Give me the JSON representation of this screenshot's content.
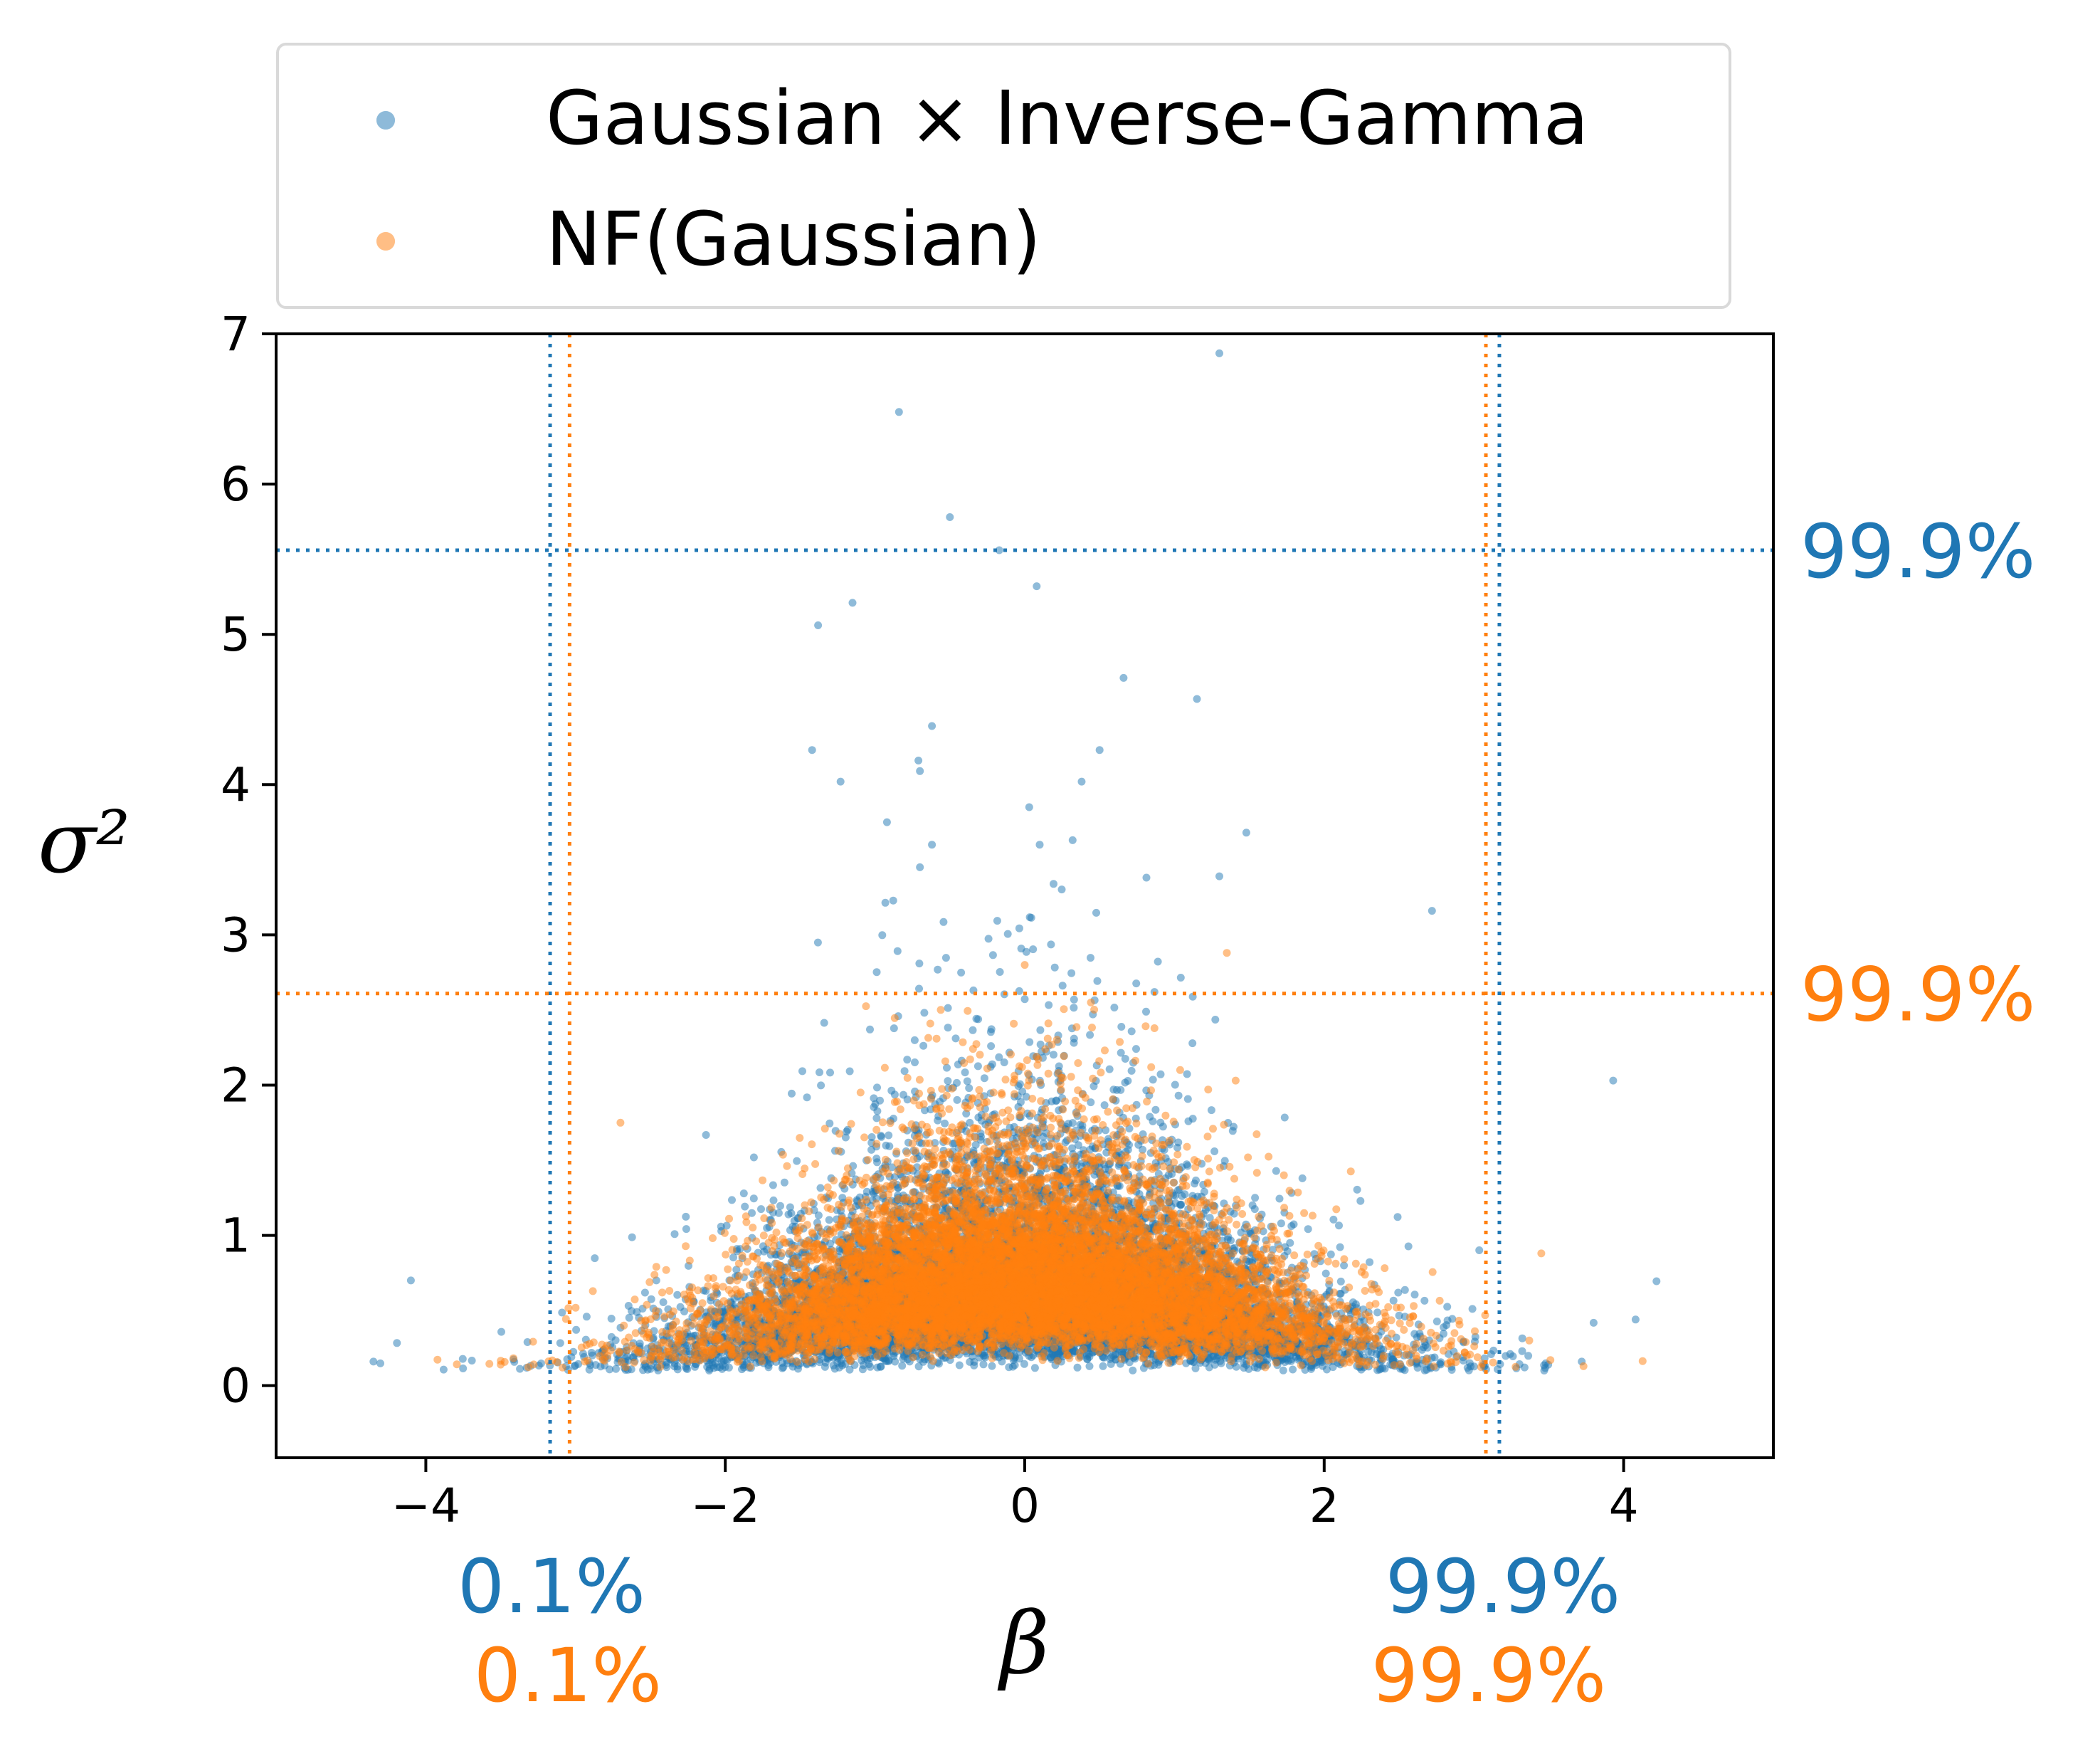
{
  "chart_data": {
    "type": "scatter",
    "xlabel": "β",
    "ylabel": "σ²",
    "xlim": [
      -5,
      5
    ],
    "ylim": [
      -0.48,
      7
    ],
    "x_ticks": [
      -4,
      -2,
      0,
      2,
      4
    ],
    "x_tick_labels": [
      "−4",
      "−2",
      "0",
      "2",
      "4"
    ],
    "y_ticks": [
      0,
      1,
      2,
      3,
      4,
      5,
      6,
      7
    ],
    "y_tick_labels": [
      "0",
      "1",
      "2",
      "3",
      "4",
      "5",
      "6",
      "7"
    ],
    "grid": false,
    "legend_placement": "above plot",
    "series": [
      {
        "name": "Gaussian × Inverse-Gamma",
        "color": "#1f77b4",
        "approx_n_points": 10000,
        "visible_outliers": [
          {
            "x": 1.3,
            "y": 6.87
          },
          {
            "x": -0.84,
            "y": 6.48
          },
          {
            "x": -0.5,
            "y": 5.78
          },
          {
            "x": -0.17,
            "y": 5.56
          },
          {
            "x": 0.08,
            "y": 5.32
          },
          {
            "x": -1.15,
            "y": 5.21
          },
          {
            "x": -1.38,
            "y": 5.06
          },
          {
            "x": 0.66,
            "y": 4.71
          },
          {
            "x": 1.15,
            "y": 4.57
          },
          {
            "x": -0.62,
            "y": 4.39
          },
          {
            "x": -1.42,
            "y": 4.23
          },
          {
            "x": -0.71,
            "y": 4.16
          },
          {
            "x": 0.5,
            "y": 4.23
          },
          {
            "x": -0.7,
            "y": 4.09
          },
          {
            "x": 0.38,
            "y": 4.02
          },
          {
            "x": -1.23,
            "y": 4.02
          },
          {
            "x": 0.03,
            "y": 3.85
          },
          {
            "x": -0.92,
            "y": 3.75
          },
          {
            "x": 1.48,
            "y": 3.68
          },
          {
            "x": 0.32,
            "y": 3.63
          },
          {
            "x": 0.1,
            "y": 3.6
          },
          {
            "x": -0.62,
            "y": 3.6
          },
          {
            "x": -0.7,
            "y": 3.45
          },
          {
            "x": 1.3,
            "y": 3.39
          },
          {
            "x": 2.72,
            "y": 3.16
          },
          {
            "x": 3.93,
            "y": 2.03
          },
          {
            "x": -4.1,
            "y": 0.7
          },
          {
            "x": -4.35,
            "y": 0.16
          },
          {
            "x": 4.08,
            "y": 0.44
          },
          {
            "x": 3.72,
            "y": 0.16
          }
        ],
        "bulk": {
          "beta_mean": 0,
          "beta_sd": 1.05,
          "sigma2_mode": 0.3,
          "sigma2_min": 0.1
        }
      },
      {
        "name": "NF(Gaussian)",
        "color": "#ff7f0e",
        "approx_n_points": 10000,
        "visible_outliers": [
          {
            "x": 1.35,
            "y": 2.88
          },
          {
            "x": 0.0,
            "y": 2.8
          },
          {
            "x": -2.7,
            "y": 1.75
          },
          {
            "x": 3.45,
            "y": 0.88
          },
          {
            "x": 3.37,
            "y": 0.3
          },
          {
            "x": -3.5,
            "y": 0.14
          }
        ],
        "bulk": {
          "beta_mean": 0,
          "beta_sd": 1.0,
          "sigma2_mode": 0.35,
          "sigma2_max": 2.6
        }
      }
    ],
    "reference_lines": [
      {
        "orientation": "vertical",
        "value": -3.17,
        "color": "#1f77b4",
        "label": "0.1%"
      },
      {
        "orientation": "vertical",
        "value": 3.17,
        "color": "#1f77b4",
        "label": "99.9%"
      },
      {
        "orientation": "vertical",
        "value": -3.04,
        "color": "#ff7f0e",
        "label": "0.1%"
      },
      {
        "orientation": "vertical",
        "value": 3.08,
        "color": "#ff7f0e",
        "label": "99.9%"
      },
      {
        "orientation": "horizontal",
        "value": 5.56,
        "color": "#1f77b4",
        "label": "99.9%"
      },
      {
        "orientation": "horizontal",
        "value": 2.61,
        "color": "#ff7f0e",
        "label": "99.9%"
      }
    ]
  }
}
